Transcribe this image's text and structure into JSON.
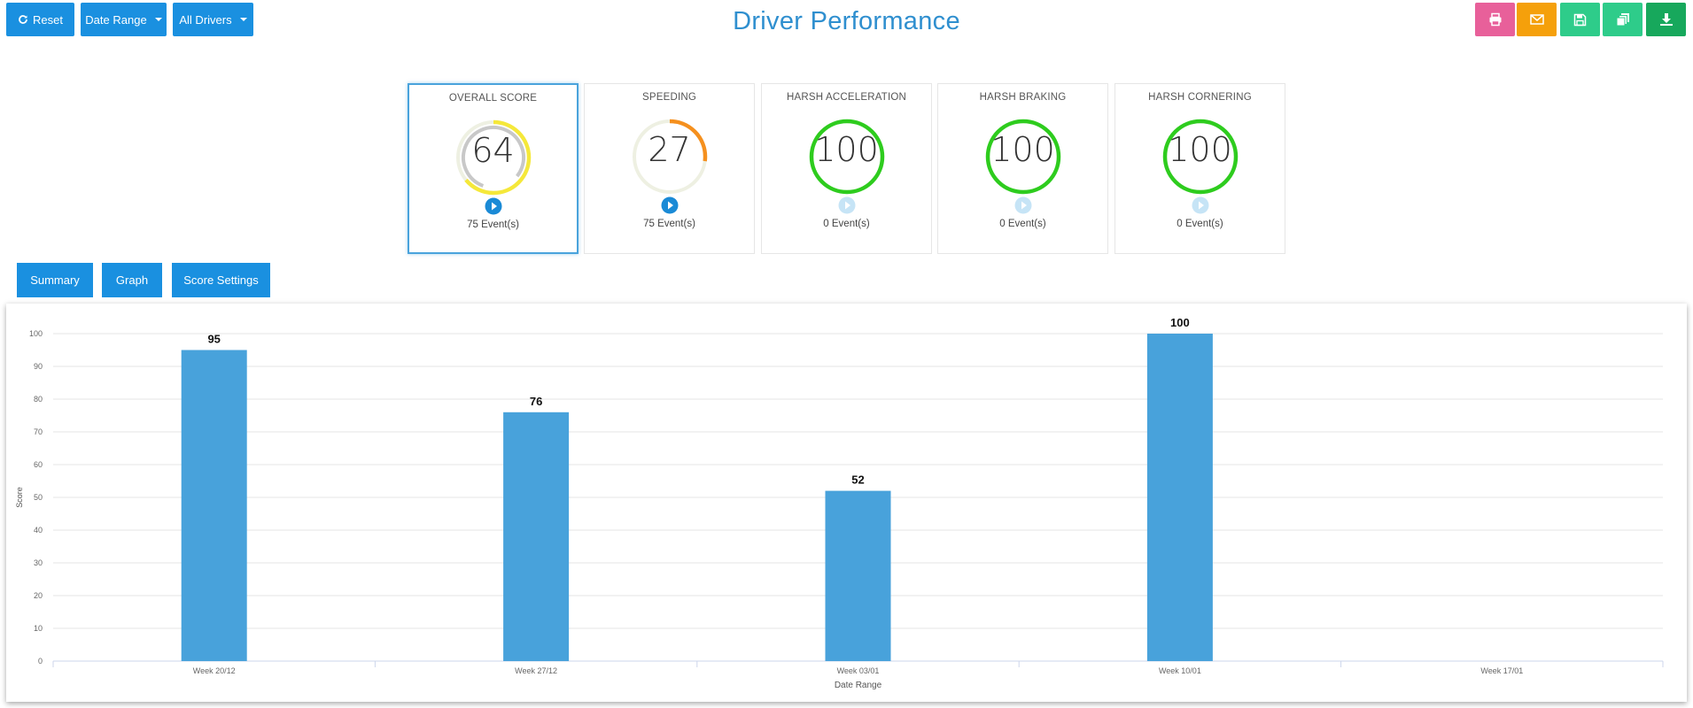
{
  "toolbar": {
    "reset_label": "Reset",
    "date_range_label": "Date Range",
    "all_drivers_label": "All Drivers",
    "actions": [
      {
        "name": "print-button",
        "icon": "print-icon",
        "color": "#e8609a"
      },
      {
        "name": "email-button",
        "icon": "envelope-icon",
        "color": "#f5a00b"
      },
      {
        "name": "save-button",
        "icon": "floppy-disk-icon",
        "color": "#2ecc8a"
      },
      {
        "name": "copy-button",
        "icon": "copy-icon",
        "color": "#2ecc8a"
      },
      {
        "name": "download-button",
        "icon": "download-icon",
        "color": "#17a85c"
      }
    ]
  },
  "header": {
    "title": "Driver Performance"
  },
  "scores": [
    {
      "title": "OVERALL SCORE",
      "value": 64,
      "events": "75 Event(s)",
      "arc_color": "#f5e83a",
      "selected": true,
      "active": true
    },
    {
      "title": "SPEEDING",
      "value": 27,
      "events": "75 Event(s)",
      "arc_color": "#f5901e",
      "selected": false,
      "active": true
    },
    {
      "title": "HARSH ACCELERATION",
      "value": 100,
      "events": "0 Event(s)",
      "arc_color": "#2ecc1e",
      "selected": false,
      "active": false
    },
    {
      "title": "HARSH BRAKING",
      "value": 100,
      "events": "0 Event(s)",
      "arc_color": "#2ecc1e",
      "selected": false,
      "active": false
    },
    {
      "title": "HARSH CORNERING",
      "value": 100,
      "events": "0 Event(s)",
      "arc_color": "#2ecc1e",
      "selected": false,
      "active": false
    }
  ],
  "tabs": {
    "summary_label": "Summary",
    "graph_label": "Graph",
    "score_settings_label": "Score Settings"
  },
  "chart_data": {
    "type": "bar",
    "categories": [
      "Week 20/12",
      "Week 27/12",
      "Week 03/01",
      "Week 10/01",
      "Week 17/01"
    ],
    "values": [
      95,
      76,
      52,
      100,
      null
    ],
    "data_labels": [
      "95",
      "76",
      "52",
      "100",
      ""
    ],
    "xlabel": "Date Range",
    "ylabel": "Score",
    "ylim": [
      0,
      100
    ],
    "yticks": [
      0,
      10,
      20,
      30,
      40,
      50,
      60,
      70,
      80,
      90,
      100
    ],
    "grid": true,
    "bar_color": "#48a2db"
  }
}
